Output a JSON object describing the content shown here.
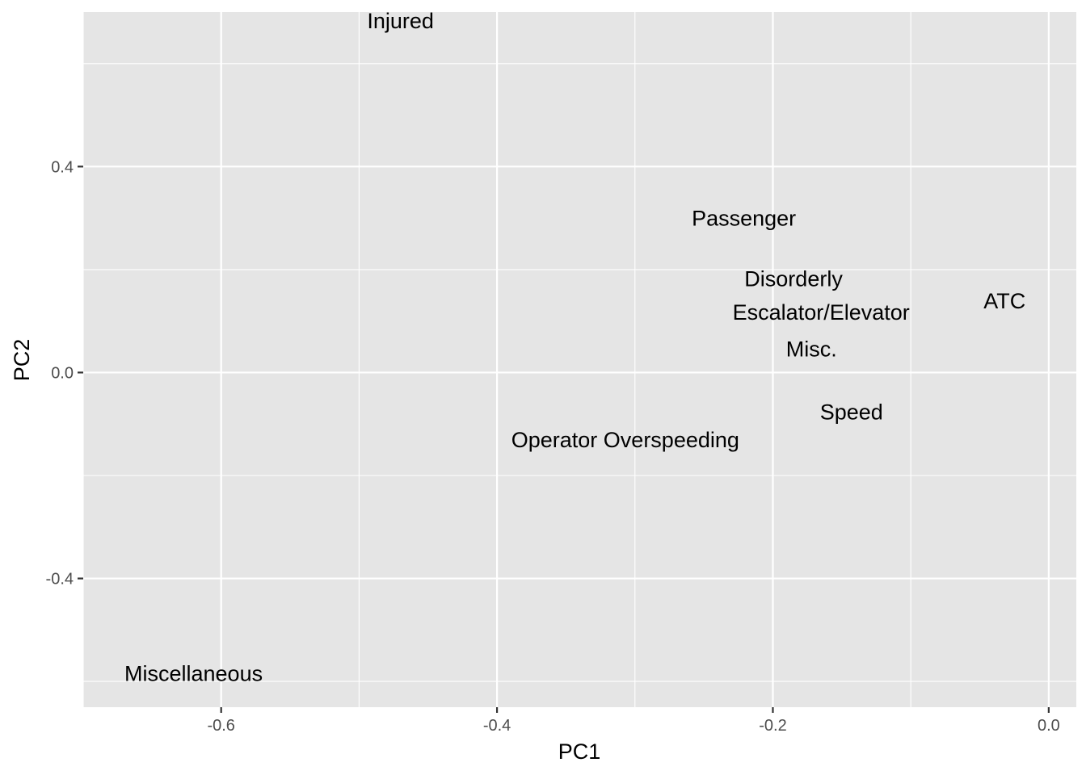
{
  "chart_data": {
    "type": "scatter",
    "title": "",
    "xlabel": "PC1",
    "ylabel": "PC2",
    "xlim": [
      -0.7,
      0.02
    ],
    "ylim": [
      -0.65,
      0.7
    ],
    "x_ticks": [
      {
        "value": -0.6,
        "label": "-0.6"
      },
      {
        "value": -0.4,
        "label": "-0.4"
      },
      {
        "value": -0.2,
        "label": "-0.2"
      },
      {
        "value": 0.0,
        "label": "0.0"
      }
    ],
    "y_ticks": [
      {
        "value": 0.4,
        "label": "0.4"
      },
      {
        "value": 0.0,
        "label": "0.0"
      },
      {
        "value": -0.4,
        "label": "-0.4"
      }
    ],
    "x_minor": [
      -0.7,
      -0.5,
      -0.3,
      -0.1
    ],
    "y_minor": [
      0.6,
      0.2,
      -0.2,
      -0.6
    ],
    "grid": true,
    "points": [
      {
        "label": "Injured",
        "x": -0.47,
        "y": 0.683
      },
      {
        "label": "Passenger",
        "x": -0.221,
        "y": 0.299
      },
      {
        "label": "Disorderly",
        "x": -0.185,
        "y": 0.182
      },
      {
        "label": "ATC",
        "x": -0.032,
        "y": 0.139
      },
      {
        "label": "Escalator/Elevator",
        "x": -0.165,
        "y": 0.117
      },
      {
        "label": "Misc.",
        "x": -0.172,
        "y": 0.045
      },
      {
        "label": "Speed",
        "x": -0.143,
        "y": -0.077
      },
      {
        "label": "Operator Overspeeding",
        "x": -0.307,
        "y": -0.131
      },
      {
        "label": "Miscellaneous",
        "x": -0.62,
        "y": -0.585
      }
    ]
  }
}
